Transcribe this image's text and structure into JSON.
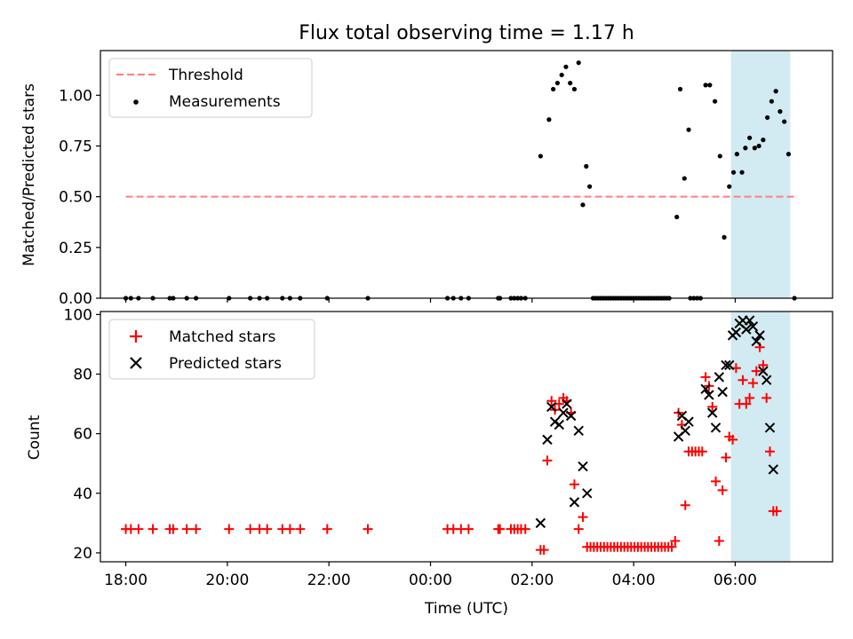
{
  "chart_data": [
    {
      "type": "scatter",
      "title": "Flux total observing time = 1.17 h",
      "xlabel": "",
      "ylabel": "Matched/Predicted stars",
      "xlim": [
        "17:30",
        "07:55"
      ],
      "ylim": [
        0,
        1.22
      ],
      "yticks": [
        "0.00",
        "0.25",
        "0.50",
        "0.75",
        "1.00"
      ],
      "grid": false,
      "legend": {
        "placement": "top-left",
        "entries": [
          "Threshold",
          "Measurements"
        ]
      },
      "highlight_span": {
        "start": "05:55",
        "end": "07:05",
        "color": "#add8e6"
      },
      "threshold": {
        "name": "Threshold",
        "y": 0.5,
        "x_start": "18:00",
        "x_end": "07:10",
        "color": "#ff7f7f",
        "style": "dashed"
      },
      "series": [
        {
          "name": "Measurements",
          "color": "#000000",
          "points": [
            [
              "18:00",
              0
            ],
            [
              "18:06",
              0
            ],
            [
              "18:15",
              0
            ],
            [
              "18:32",
              0
            ],
            [
              "18:52",
              0
            ],
            [
              "18:56",
              0
            ],
            [
              "19:12",
              0
            ],
            [
              "19:23",
              0
            ],
            [
              "20:02",
              0
            ],
            [
              "20:27",
              0
            ],
            [
              "20:38",
              0
            ],
            [
              "20:47",
              0
            ],
            [
              "21:05",
              0
            ],
            [
              "21:14",
              0
            ],
            [
              "21:26",
              0
            ],
            [
              "21:58",
              0
            ],
            [
              "22:46",
              0
            ],
            [
              "00:20",
              0
            ],
            [
              "00:27",
              0
            ],
            [
              "00:36",
              0
            ],
            [
              "00:45",
              0
            ],
            [
              "01:20",
              0
            ],
            [
              "01:22",
              0
            ],
            [
              "01:35",
              0
            ],
            [
              "01:39",
              0
            ],
            [
              "01:43",
              0
            ],
            [
              "01:47",
              0
            ],
            [
              "01:52",
              0
            ],
            [
              "02:10",
              0.7
            ],
            [
              "02:20",
              0.88
            ],
            [
              "02:25",
              1.03
            ],
            [
              "02:30",
              1.06
            ],
            [
              "02:35",
              1.1
            ],
            [
              "02:40",
              1.14
            ],
            [
              "02:45",
              1.06
            ],
            [
              "02:50",
              1.03
            ],
            [
              "02:55",
              1.16
            ],
            [
              "03:00",
              0.46
            ],
            [
              "03:04",
              0.65
            ],
            [
              "03:08",
              0.55
            ],
            [
              "03:12",
              0
            ],
            [
              "03:15",
              0
            ],
            [
              "03:18",
              0
            ],
            [
              "03:21",
              0
            ],
            [
              "03:24",
              0
            ],
            [
              "03:27",
              0
            ],
            [
              "03:30",
              0
            ],
            [
              "03:33",
              0
            ],
            [
              "03:36",
              0
            ],
            [
              "03:39",
              0
            ],
            [
              "03:42",
              0
            ],
            [
              "03:45",
              0
            ],
            [
              "03:48",
              0
            ],
            [
              "03:51",
              0
            ],
            [
              "03:54",
              0
            ],
            [
              "03:57",
              0
            ],
            [
              "04:00",
              0
            ],
            [
              "04:03",
              0
            ],
            [
              "04:06",
              0
            ],
            [
              "04:09",
              0
            ],
            [
              "04:12",
              0
            ],
            [
              "04:15",
              0
            ],
            [
              "04:18",
              0
            ],
            [
              "04:21",
              0
            ],
            [
              "04:24",
              0
            ],
            [
              "04:27",
              0
            ],
            [
              "04:30",
              0
            ],
            [
              "04:33",
              0
            ],
            [
              "04:36",
              0
            ],
            [
              "04:39",
              0
            ],
            [
              "04:42",
              0
            ],
            [
              "04:51",
              0.4
            ],
            [
              "04:55",
              1.03
            ],
            [
              "05:00",
              0.59
            ],
            [
              "05:05",
              0.83
            ],
            [
              "05:07",
              0
            ],
            [
              "05:11",
              0
            ],
            [
              "05:15",
              0
            ],
            [
              "05:19",
              0
            ],
            [
              "05:25",
              1.05
            ],
            [
              "05:30",
              1.05
            ],
            [
              "05:36",
              0.97
            ],
            [
              "05:42",
              0.7
            ],
            [
              "05:47",
              0.3
            ],
            [
              "05:53",
              0.55
            ],
            [
              "05:58",
              0.62
            ],
            [
              "06:02",
              0.71
            ],
            [
              "06:08",
              0.62
            ],
            [
              "06:12",
              0.74
            ],
            [
              "06:17",
              0.79
            ],
            [
              "06:23",
              0.74
            ],
            [
              "06:28",
              0.75
            ],
            [
              "06:33",
              0.78
            ],
            [
              "06:38",
              0.89
            ],
            [
              "06:43",
              0.97
            ],
            [
              "06:48",
              1.02
            ],
            [
              "06:53",
              0.92
            ],
            [
              "06:58",
              0.87
            ],
            [
              "07:03",
              0.71
            ],
            [
              "07:10",
              0
            ]
          ]
        }
      ]
    },
    {
      "type": "scatter",
      "title": "",
      "xlabel": "Time (UTC)",
      "ylabel": "Count",
      "xlim": [
        "17:30",
        "07:55"
      ],
      "ylim": [
        17,
        101
      ],
      "xticks": [
        "18:00",
        "20:00",
        "22:00",
        "00:00",
        "02:00",
        "04:00",
        "06:00"
      ],
      "yticks": [
        "20",
        "40",
        "60",
        "80",
        "100"
      ],
      "grid": false,
      "legend": {
        "placement": "top-left",
        "entries": [
          "Matched stars",
          "Predicted stars"
        ]
      },
      "highlight_span": {
        "start": "05:55",
        "end": "07:05",
        "color": "#add8e6"
      },
      "series": [
        {
          "name": "Matched stars",
          "marker": "plus",
          "color": "#ff0000",
          "points": [
            [
              "18:00",
              28
            ],
            [
              "18:06",
              28
            ],
            [
              "18:15",
              28
            ],
            [
              "18:32",
              28
            ],
            [
              "18:52",
              28
            ],
            [
              "18:56",
              28
            ],
            [
              "19:12",
              28
            ],
            [
              "19:23",
              28
            ],
            [
              "20:02",
              28
            ],
            [
              "20:27",
              28
            ],
            [
              "20:38",
              28
            ],
            [
              "20:47",
              28
            ],
            [
              "21:05",
              28
            ],
            [
              "21:14",
              28
            ],
            [
              "21:26",
              28
            ],
            [
              "21:58",
              28
            ],
            [
              "22:46",
              28
            ],
            [
              "00:20",
              28
            ],
            [
              "00:27",
              28
            ],
            [
              "00:36",
              28
            ],
            [
              "00:45",
              28
            ],
            [
              "01:20",
              28
            ],
            [
              "01:22",
              28
            ],
            [
              "01:35",
              28
            ],
            [
              "01:39",
              28
            ],
            [
              "01:43",
              28
            ],
            [
              "01:47",
              28
            ],
            [
              "01:52",
              28
            ],
            [
              "02:10",
              21
            ],
            [
              "02:14",
              21
            ],
            [
              "02:18",
              51
            ],
            [
              "02:23",
              71
            ],
            [
              "02:27",
              68
            ],
            [
              "02:32",
              70
            ],
            [
              "02:37",
              72
            ],
            [
              "02:41",
              71
            ],
            [
              "02:46",
              67
            ],
            [
              "02:50",
              43
            ],
            [
              "02:55",
              28
            ],
            [
              "03:00",
              32
            ],
            [
              "03:05",
              22
            ],
            [
              "03:09",
              22
            ],
            [
              "03:13",
              22
            ],
            [
              "03:17",
              22
            ],
            [
              "03:21",
              22
            ],
            [
              "03:25",
              22
            ],
            [
              "03:29",
              22
            ],
            [
              "03:33",
              22
            ],
            [
              "03:37",
              22
            ],
            [
              "03:41",
              22
            ],
            [
              "03:45",
              22
            ],
            [
              "03:49",
              22
            ],
            [
              "03:53",
              22
            ],
            [
              "03:57",
              22
            ],
            [
              "04:01",
              22
            ],
            [
              "04:05",
              22
            ],
            [
              "04:09",
              22
            ],
            [
              "04:13",
              22
            ],
            [
              "04:17",
              22
            ],
            [
              "04:21",
              22
            ],
            [
              "04:25",
              22
            ],
            [
              "04:29",
              22
            ],
            [
              "04:33",
              22
            ],
            [
              "04:37",
              22
            ],
            [
              "04:41",
              22
            ],
            [
              "04:45",
              22
            ],
            [
              "04:49",
              24
            ],
            [
              "04:53",
              67
            ],
            [
              "04:57",
              63
            ],
            [
              "05:01",
              36
            ],
            [
              "05:05",
              54
            ],
            [
              "05:09",
              54
            ],
            [
              "05:13",
              54
            ],
            [
              "05:17",
              54
            ],
            [
              "05:21",
              54
            ],
            [
              "05:25",
              79
            ],
            [
              "05:29",
              76
            ],
            [
              "05:33",
              69
            ],
            [
              "05:37",
              44
            ],
            [
              "05:41",
              24
            ],
            [
              "05:45",
              41
            ],
            [
              "05:49",
              52
            ],
            [
              "05:53",
              59
            ],
            [
              "05:57",
              58
            ],
            [
              "06:01",
              82
            ],
            [
              "06:05",
              70
            ],
            [
              "06:09",
              78
            ],
            [
              "06:13",
              70
            ],
            [
              "06:17",
              72
            ],
            [
              "06:21",
              77
            ],
            [
              "06:25",
              81
            ],
            [
              "06:29",
              89
            ],
            [
              "06:33",
              83
            ],
            [
              "06:37",
              72
            ],
            [
              "06:41",
              54
            ],
            [
              "06:45",
              34
            ],
            [
              "06:49",
              34
            ]
          ]
        },
        {
          "name": "Predicted stars",
          "marker": "x",
          "color": "#000000",
          "points": [
            [
              "02:10",
              30
            ],
            [
              "02:18",
              58
            ],
            [
              "02:23",
              69
            ],
            [
              "02:27",
              64
            ],
            [
              "02:32",
              63
            ],
            [
              "02:37",
              67
            ],
            [
              "02:41",
              70
            ],
            [
              "02:46",
              66
            ],
            [
              "02:50",
              37
            ],
            [
              "02:55",
              61
            ],
            [
              "03:00",
              49
            ],
            [
              "03:05",
              40
            ],
            [
              "04:53",
              59
            ],
            [
              "04:57",
              66
            ],
            [
              "05:01",
              61
            ],
            [
              "05:05",
              64
            ],
            [
              "05:25",
              75
            ],
            [
              "05:29",
              73
            ],
            [
              "05:33",
              67
            ],
            [
              "05:37",
              62
            ],
            [
              "05:41",
              79
            ],
            [
              "05:45",
              74
            ],
            [
              "05:49",
              83
            ],
            [
              "05:53",
              83
            ],
            [
              "05:57",
              93
            ],
            [
              "06:01",
              94
            ],
            [
              "06:05",
              97
            ],
            [
              "06:09",
              98
            ],
            [
              "06:13",
              95
            ],
            [
              "06:17",
              98
            ],
            [
              "06:21",
              96
            ],
            [
              "06:25",
              91
            ],
            [
              "06:29",
              93
            ],
            [
              "06:33",
              81
            ],
            [
              "06:37",
              78
            ],
            [
              "06:41",
              62
            ],
            [
              "06:45",
              48
            ]
          ]
        }
      ]
    }
  ]
}
